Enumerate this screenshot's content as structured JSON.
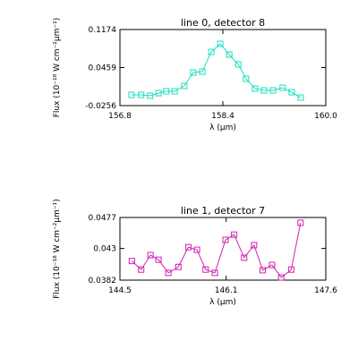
{
  "chart_data": [
    {
      "type": "line",
      "title": "line 0, detector 8",
      "xlabel": "λ (μm)",
      "ylabel": "Flux (10⁻¹⁸ W cm⁻²μm⁻¹)",
      "color": "#1fdcc0",
      "marker": "square",
      "x": [
        156.98,
        157.13,
        157.27,
        157.4,
        157.52,
        157.65,
        157.8,
        157.94,
        158.08,
        158.22,
        158.36,
        158.5,
        158.64,
        158.76,
        158.9,
        159.04,
        159.18,
        159.33,
        159.47,
        159.61
      ],
      "values": [
        -0.0054,
        -0.0054,
        -0.0071,
        -0.0021,
        0.0013,
        0.0013,
        0.0114,
        0.0366,
        0.0383,
        0.0753,
        0.0905,
        0.0703,
        0.0518,
        0.0249,
        0.0064,
        0.003,
        0.003,
        0.008,
        -0.0004,
        -0.0105
      ],
      "xlim": [
        156.8,
        160.0
      ],
      "xticks": [
        156.8,
        158.4,
        {
          "value": 160.0,
          "label": "160.0"
        }
      ],
      "ylim": [
        -0.0256,
        0.1174
      ],
      "yticks": [
        -0.0256,
        0.0459,
        0.1174
      ]
    },
    {
      "type": "line",
      "title": "line 1, detector 7",
      "xlabel": "λ (μm)",
      "ylabel": "Flux (10⁻¹⁸ W cm⁻²μm⁻¹)",
      "color": "#d21fb4",
      "marker": "square",
      "x": [
        144.68,
        144.82,
        144.96,
        145.08,
        145.23,
        145.38,
        145.53,
        145.66,
        145.79,
        145.93,
        146.09,
        146.22,
        146.37,
        146.52,
        146.65,
        146.79,
        146.93,
        147.08,
        147.22
      ],
      "values": [
        0.0411,
        0.0398,
        0.042,
        0.0413,
        0.0393,
        0.0402,
        0.0432,
        0.0428,
        0.0398,
        0.0393,
        0.0443,
        0.0451,
        0.0416,
        0.0435,
        0.0397,
        0.0405,
        0.0386,
        0.0398,
        0.0469
      ],
      "xlim": [
        144.5,
        147.6
      ],
      "xticks": [
        144.5,
        146.1,
        147.6
      ],
      "ylim": [
        0.0382,
        0.0477
      ],
      "yticks": [
        0.0382,
        0.043,
        0.0477
      ]
    }
  ]
}
